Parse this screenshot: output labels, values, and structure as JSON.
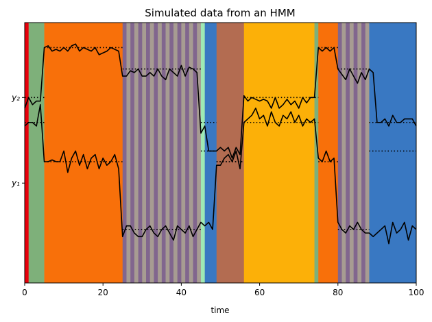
{
  "chart_data": {
    "type": "line",
    "title": "Simulated data from an HMM",
    "xlabel": "time",
    "ylabel": "",
    "xlim": [
      0,
      100
    ],
    "ylim": [
      -4.3,
      3.0
    ],
    "x_ticks": [
      0,
      20,
      40,
      60,
      80,
      100
    ],
    "x_tick_labels": [
      "0",
      "20",
      "40",
      "60",
      "80",
      "100"
    ],
    "y_ticks": [
      {
        "value": -1.5,
        "label": "y₁"
      },
      {
        "value": 0.9,
        "label": "y₂"
      }
    ],
    "grid": false,
    "legend": "none",
    "state_colors": {
      "red": "#e8000b",
      "green": "#7eb07a",
      "orange": "#f8700a",
      "mauve": "#81668e",
      "taupe": "#a79c92",
      "mint": "#9fe9b4",
      "blue": "#3978c2",
      "brown": "#b36c51",
      "gold": "#fcb008"
    },
    "state_segments": [
      {
        "start": 0,
        "end": 1,
        "state": "red"
      },
      {
        "start": 1,
        "end": 5,
        "state": "green"
      },
      {
        "start": 5,
        "end": 25,
        "state": "orange"
      },
      {
        "start": 25,
        "end": 26,
        "state": "mauve"
      },
      {
        "start": 26,
        "end": 27,
        "state": "taupe"
      },
      {
        "start": 27,
        "end": 28,
        "state": "mauve"
      },
      {
        "start": 28,
        "end": 29,
        "state": "taupe"
      },
      {
        "start": 29,
        "end": 30,
        "state": "mauve"
      },
      {
        "start": 30,
        "end": 31,
        "state": "taupe"
      },
      {
        "start": 31,
        "end": 32,
        "state": "mauve"
      },
      {
        "start": 32,
        "end": 33,
        "state": "taupe"
      },
      {
        "start": 33,
        "end": 34,
        "state": "mauve"
      },
      {
        "start": 34,
        "end": 35,
        "state": "taupe"
      },
      {
        "start": 35,
        "end": 36,
        "state": "mauve"
      },
      {
        "start": 36,
        "end": 37,
        "state": "taupe"
      },
      {
        "start": 37,
        "end": 38,
        "state": "mauve"
      },
      {
        "start": 38,
        "end": 39,
        "state": "taupe"
      },
      {
        "start": 39,
        "end": 40,
        "state": "mauve"
      },
      {
        "start": 40,
        "end": 41,
        "state": "taupe"
      },
      {
        "start": 41,
        "end": 42,
        "state": "mauve"
      },
      {
        "start": 42,
        "end": 43,
        "state": "taupe"
      },
      {
        "start": 43,
        "end": 44,
        "state": "mauve"
      },
      {
        "start": 44,
        "end": 45,
        "state": "taupe"
      },
      {
        "start": 45,
        "end": 46,
        "state": "mint"
      },
      {
        "start": 46,
        "end": 49,
        "state": "blue"
      },
      {
        "start": 49,
        "end": 56,
        "state": "brown"
      },
      {
        "start": 56,
        "end": 74,
        "state": "gold"
      },
      {
        "start": 74,
        "end": 75,
        "state": "green"
      },
      {
        "start": 75,
        "end": 80,
        "state": "orange"
      },
      {
        "start": 80,
        "end": 81,
        "state": "mauve"
      },
      {
        "start": 81,
        "end": 82,
        "state": "taupe"
      },
      {
        "start": 82,
        "end": 83,
        "state": "mauve"
      },
      {
        "start": 83,
        "end": 84,
        "state": "taupe"
      },
      {
        "start": 84,
        "end": 85,
        "state": "mauve"
      },
      {
        "start": 85,
        "end": 86,
        "state": "taupe"
      },
      {
        "start": 86,
        "end": 87,
        "state": "mauve"
      },
      {
        "start": 87,
        "end": 88,
        "state": "taupe"
      },
      {
        "start": 88,
        "end": 100,
        "state": "blue"
      }
    ],
    "state_means": {
      "red": [
        0.2,
        0.9
      ],
      "green": [
        0.2,
        0.9
      ],
      "orange": [
        -0.9,
        2.3
      ],
      "mauve": [
        -2.8,
        1.7
      ],
      "taupe": [
        -2.8,
        1.7
      ],
      "mint": [
        -0.6,
        0.2
      ],
      "blue": [
        -0.6,
        0.2
      ],
      "brown": [
        -0.9,
        -0.9
      ],
      "gold": [
        0.2,
        0.9
      ],
      "series_note": null
    },
    "series": [
      {
        "values_y1": [
          0.1,
          0.2,
          0.2,
          0.1,
          0.7,
          -0.9,
          -0.9,
          -0.85,
          -0.9,
          -0.9,
          -0.6,
          -1.2,
          -0.8,
          -0.6,
          -1.0,
          -0.7,
          -1.1,
          -0.8,
          -0.7,
          -1.1,
          -0.8,
          -1.0,
          -0.9,
          -0.7,
          -1.1,
          -3.0,
          -2.7,
          -2.7,
          -2.9,
          -3.0,
          -3.0,
          -2.8,
          -2.7,
          -2.9,
          -3.0,
          -2.8,
          -2.7,
          -2.9,
          -3.1,
          -2.7,
          -2.8,
          -2.9,
          -2.7,
          -3.0,
          -2.8,
          -2.6,
          -2.7,
          -2.6,
          -2.8,
          -1.0,
          -1.0,
          -0.8,
          -0.7,
          -0.9,
          -0.6,
          -1.1,
          0.2,
          0.3,
          0.4,
          0.6,
          0.3,
          0.4,
          0.1,
          0.5,
          0.2,
          0.1,
          0.4,
          0.3,
          0.5,
          0.2,
          0.4,
          0.1,
          0.3,
          0.2,
          0.3,
          -0.8,
          -0.9,
          -0.6,
          -0.9,
          -0.8,
          -2.6,
          -2.8,
          -2.9,
          -2.7,
          -2.8,
          -2.6,
          -2.8,
          -2.9,
          -2.9,
          -3.0,
          -2.9,
          -2.8,
          -2.7,
          -3.2,
          -2.6,
          -2.9,
          -2.8,
          -2.6,
          -3.1,
          -2.7,
          -2.8
        ],
        "values_y2": [
          0.6,
          0.9,
          0.7,
          0.8,
          0.8,
          2.3,
          2.35,
          2.2,
          2.25,
          2.2,
          2.3,
          2.2,
          2.35,
          2.4,
          2.2,
          2.3,
          2.25,
          2.2,
          2.3,
          2.1,
          2.15,
          2.2,
          2.3,
          2.25,
          2.2,
          1.5,
          1.5,
          1.65,
          1.6,
          1.7,
          1.5,
          1.5,
          1.6,
          1.5,
          1.7,
          1.5,
          1.4,
          1.7,
          1.6,
          1.5,
          1.8,
          1.5,
          1.75,
          1.7,
          1.6,
          -0.1,
          0.1,
          -0.6,
          -0.6,
          -0.6,
          -0.5,
          -0.6,
          -0.5,
          -0.8,
          -0.5,
          -0.7,
          0.95,
          0.8,
          0.9,
          0.85,
          0.8,
          0.85,
          0.8,
          0.6,
          0.9,
          0.6,
          0.7,
          0.85,
          0.7,
          0.8,
          0.6,
          0.9,
          0.75,
          0.9,
          0.9,
          2.3,
          2.2,
          2.3,
          2.2,
          2.3,
          1.7,
          1.55,
          1.4,
          1.7,
          1.5,
          1.3,
          1.6,
          1.4,
          1.7,
          1.6,
          0.2,
          0.2,
          0.3,
          0.1,
          0.4,
          0.2,
          0.2,
          0.3,
          0.3,
          0.3,
          0.1
        ]
      }
    ]
  }
}
